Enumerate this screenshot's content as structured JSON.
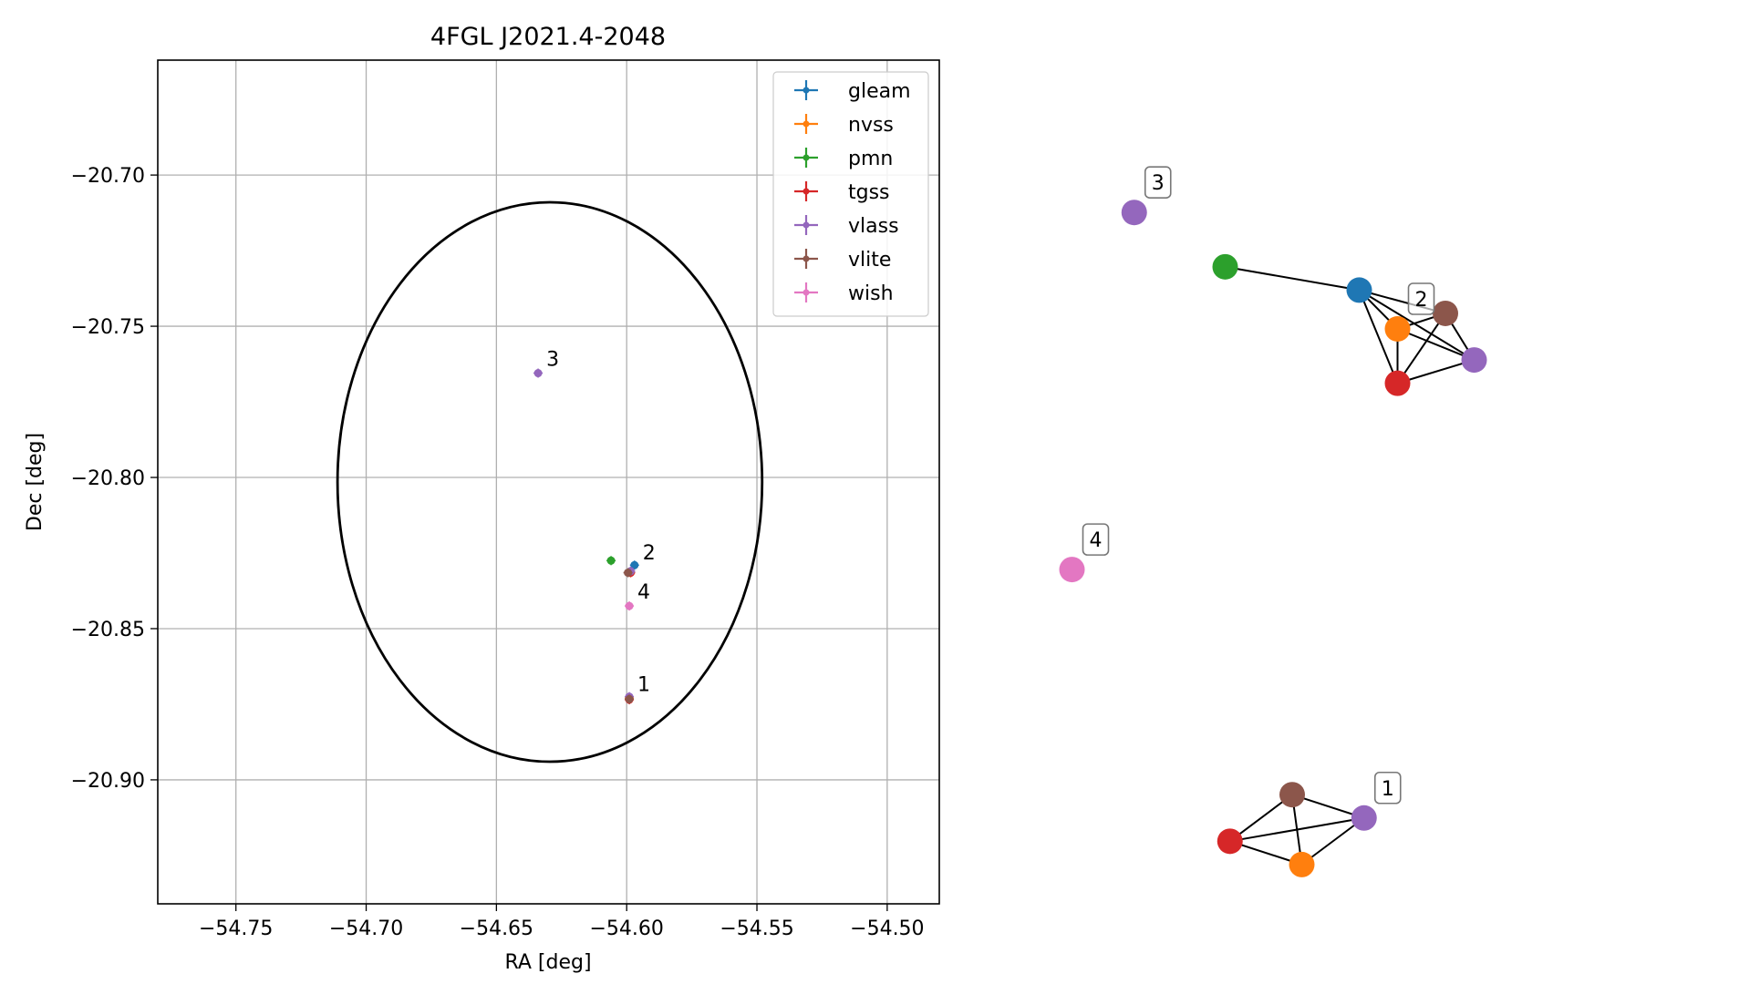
{
  "chart_data": [
    {
      "type": "scatter",
      "title": "4FGL J2021.4-2048",
      "xlabel": "RA [deg]",
      "ylabel": "Dec [deg]",
      "xlim": [
        -54.78,
        -54.48
      ],
      "ylim": [
        -20.941,
        -20.662
      ],
      "grid": true,
      "xticks": [
        -54.75,
        -54.7,
        -54.65,
        -54.6,
        -54.55,
        -54.5
      ],
      "xtick_labels": [
        "−54.75",
        "−54.70",
        "−54.65",
        "−54.60",
        "−54.55",
        "−54.50"
      ],
      "yticks": [
        -20.7,
        -20.75,
        -20.8,
        -20.85,
        -20.9
      ],
      "ytick_labels": [
        "−20.70",
        "−20.75",
        "−20.80",
        "−20.85",
        "−20.90"
      ],
      "legend_position": "top-right",
      "series": [
        {
          "name": "gleam",
          "color": "#1f77b4",
          "points": [
            {
              "x": -54.597,
              "y": -20.829
            }
          ]
        },
        {
          "name": "nvss",
          "color": "#ff7f0e",
          "points": [
            {
              "x": -54.5985,
              "y": -20.8315
            },
            {
              "x": -54.599,
              "y": -20.873
            }
          ]
        },
        {
          "name": "pmn",
          "color": "#2ca02c",
          "points": [
            {
              "x": -54.606,
              "y": -20.8275
            }
          ]
        },
        {
          "name": "tgss",
          "color": "#d62728",
          "points": [
            {
              "x": -54.5985,
              "y": -20.8315
            },
            {
              "x": -54.599,
              "y": -20.8735
            }
          ]
        },
        {
          "name": "vlass",
          "color": "#9467bd",
          "points": [
            {
              "x": -54.634,
              "y": -20.7655
            },
            {
              "x": -54.5985,
              "y": -20.831
            },
            {
              "x": -54.599,
              "y": -20.8725
            }
          ]
        },
        {
          "name": "vlite",
          "color": "#8c564b",
          "points": [
            {
              "x": -54.5995,
              "y": -20.8315
            },
            {
              "x": -54.599,
              "y": -20.8733
            }
          ]
        },
        {
          "name": "wish",
          "color": "#e377c2",
          "points": [
            {
              "x": -54.599,
              "y": -20.8425
            }
          ]
        }
      ],
      "ellipse": {
        "center_x": -54.6295,
        "center_y": -20.8015,
        "semi_axis_x": 0.0815,
        "semi_axis_y": 0.0925
      },
      "annotations": [
        {
          "text": "3",
          "x": -54.634,
          "y": -20.7655
        },
        {
          "text": "2",
          "x": -54.597,
          "y": -20.8295
        },
        {
          "text": "4",
          "x": -54.599,
          "y": -20.8425
        },
        {
          "text": "1",
          "x": -54.599,
          "y": -20.873
        }
      ]
    },
    {
      "type": "network",
      "nodes": [
        {
          "id": "c3-vlass",
          "color": "#9467bd",
          "x": 0.15,
          "y": 0.9,
          "label": "3"
        },
        {
          "id": "c2-pmn",
          "color": "#2ca02c",
          "x": 0.34,
          "y": 0.83
        },
        {
          "id": "c2-gleam",
          "color": "#1f77b4",
          "x": 0.62,
          "y": 0.8
        },
        {
          "id": "c2-nvss",
          "color": "#ff7f0e",
          "x": 0.7,
          "y": 0.75,
          "label": "2"
        },
        {
          "id": "c2-vlite",
          "color": "#8c564b",
          "x": 0.8,
          "y": 0.77
        },
        {
          "id": "c2-vlass",
          "color": "#9467bd",
          "x": 0.86,
          "y": 0.71
        },
        {
          "id": "c2-tgss",
          "color": "#d62728",
          "x": 0.7,
          "y": 0.68
        },
        {
          "id": "c4-wish",
          "color": "#e377c2",
          "x": 0.02,
          "y": 0.44,
          "label": "4"
        },
        {
          "id": "c1-vlite",
          "color": "#8c564b",
          "x": 0.48,
          "y": 0.15
        },
        {
          "id": "c1-vlass",
          "color": "#9467bd",
          "x": 0.63,
          "y": 0.12,
          "label": "1"
        },
        {
          "id": "c1-tgss",
          "color": "#d62728",
          "x": 0.35,
          "y": 0.09
        },
        {
          "id": "c1-nvss",
          "color": "#ff7f0e",
          "x": 0.5,
          "y": 0.06
        }
      ],
      "edges": [
        [
          "c2-pmn",
          "c2-gleam"
        ],
        [
          "c2-gleam",
          "c2-nvss"
        ],
        [
          "c2-gleam",
          "c2-vlite"
        ],
        [
          "c2-gleam",
          "c2-vlass"
        ],
        [
          "c2-gleam",
          "c2-tgss"
        ],
        [
          "c2-nvss",
          "c2-vlite"
        ],
        [
          "c2-nvss",
          "c2-vlass"
        ],
        [
          "c2-nvss",
          "c2-tgss"
        ],
        [
          "c2-vlite",
          "c2-vlass"
        ],
        [
          "c2-vlite",
          "c2-tgss"
        ],
        [
          "c2-vlass",
          "c2-tgss"
        ],
        [
          "c1-vlite",
          "c1-vlass"
        ],
        [
          "c1-vlite",
          "c1-tgss"
        ],
        [
          "c1-vlite",
          "c1-nvss"
        ],
        [
          "c1-vlass",
          "c1-tgss"
        ],
        [
          "c1-vlass",
          "c1-nvss"
        ],
        [
          "c1-tgss",
          "c1-nvss"
        ]
      ]
    }
  ]
}
